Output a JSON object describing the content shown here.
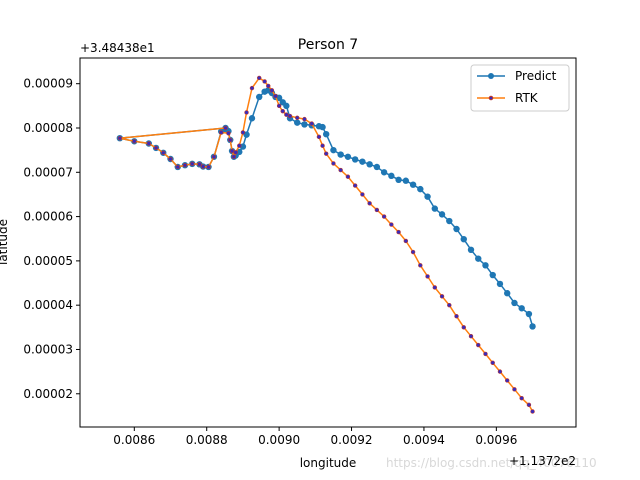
{
  "chart_data": {
    "type": "line",
    "title": "Person 7",
    "xlabel": "longitude",
    "ylabel": "latitude",
    "x_offset_label": "+1.1372e2",
    "y_offset_label": "+3.48438e1",
    "xlim": [
      0.00845,
      0.00982
    ],
    "ylim": [
      1.25e-05,
      9.58e-05
    ],
    "x_ticks": [
      0.0086,
      0.0088,
      0.009,
      0.0092,
      0.0094,
      0.0096
    ],
    "x_tick_labels": [
      "0.0086",
      "0.0088",
      "0.0090",
      "0.0092",
      "0.0094",
      "0.0096"
    ],
    "y_ticks": [
      2e-05,
      3e-05,
      4e-05,
      5e-05,
      6e-05,
      7e-05,
      8e-05,
      9e-05
    ],
    "y_tick_labels": [
      "0.00002",
      "0.00003",
      "0.00004",
      "0.00005",
      "0.00006",
      "0.00007",
      "0.00008",
      "0.00009"
    ],
    "grid": false,
    "legend_position": "top-right",
    "series": [
      {
        "name": "Predict",
        "color": "#1f77b4",
        "marker": "circle",
        "x": [
          0.008852,
          0.00856,
          0.0086,
          0.00864,
          0.00866,
          0.00868,
          0.0087,
          0.00872,
          0.00874,
          0.00876,
          0.00878,
          0.00879,
          0.008805,
          0.00882,
          0.00884,
          0.00886,
          0.008865,
          0.00887,
          0.008875,
          0.00888,
          0.00889,
          0.0089,
          0.00891,
          0.008925,
          0.008945,
          0.00896,
          0.00897,
          0.00898,
          0.00899,
          0.009,
          0.00901,
          0.00902,
          0.00903,
          0.00905,
          0.00907,
          0.00909,
          0.00911,
          0.00912,
          0.00913,
          0.00915,
          0.00917,
          0.00919,
          0.00921,
          0.00923,
          0.00925,
          0.00927,
          0.00929,
          0.00931,
          0.00933,
          0.00935,
          0.00937,
          0.00939,
          0.00941,
          0.00943,
          0.00945,
          0.00947,
          0.00949,
          0.00951,
          0.00953,
          0.00955,
          0.00957,
          0.00959,
          0.00961,
          0.00963,
          0.00965,
          0.00967,
          0.00969,
          0.0097
        ],
        "y": [
          8e-05,
          7.77e-05,
          7.7e-05,
          7.65e-05,
          7.55e-05,
          7.44e-05,
          7.3e-05,
          7.12e-05,
          7.16e-05,
          7.19e-05,
          7.18e-05,
          7.13e-05,
          7.12e-05,
          7.35e-05,
          7.92e-05,
          7.93e-05,
          7.73e-05,
          7.48e-05,
          7.35e-05,
          7.38e-05,
          7.46e-05,
          7.58e-05,
          7.85e-05,
          8.22e-05,
          8.7e-05,
          8.82e-05,
          8.85e-05,
          8.79e-05,
          8.7e-05,
          8.68e-05,
          8.58e-05,
          8.5e-05,
          8.22e-05,
          8.12e-05,
          8.08e-05,
          8.06e-05,
          8.04e-05,
          8.02e-05,
          7.86e-05,
          7.5e-05,
          7.4e-05,
          7.35e-05,
          7.29e-05,
          7.24e-05,
          7.18e-05,
          7.12e-05,
          7e-05,
          6.92e-05,
          6.83e-05,
          6.81e-05,
          6.72e-05,
          6.62e-05,
          6.45e-05,
          6.18e-05,
          6.05e-05,
          5.9e-05,
          5.72e-05,
          5.49e-05,
          5.25e-05,
          5.05e-05,
          4.9e-05,
          4.68e-05,
          4.48e-05,
          4.27e-05,
          4.05e-05,
          3.93e-05,
          3.8e-05,
          3.52e-05
        ]
      },
      {
        "name": "RTK",
        "color": "#ff7f0e",
        "marker": "star",
        "x": [
          0.008852,
          0.00856,
          0.0086,
          0.00864,
          0.00866,
          0.00868,
          0.0087,
          0.00872,
          0.00874,
          0.00876,
          0.00878,
          0.00879,
          0.008805,
          0.00882,
          0.00884,
          0.00886,
          0.008865,
          0.00887,
          0.008875,
          0.00888,
          0.00889,
          0.0089,
          0.00891,
          0.008925,
          0.008945,
          0.00896,
          0.00897,
          0.00898,
          0.00899,
          0.009,
          0.00901,
          0.00902,
          0.00903,
          0.00905,
          0.00907,
          0.00909,
          0.00911,
          0.00912,
          0.00913,
          0.00915,
          0.00917,
          0.00919,
          0.00921,
          0.00923,
          0.00925,
          0.00927,
          0.00929,
          0.00931,
          0.00933,
          0.00935,
          0.00937,
          0.00939,
          0.00941,
          0.00943,
          0.00945,
          0.00947,
          0.00949,
          0.00951,
          0.00953,
          0.00955,
          0.00957,
          0.00959,
          0.00961,
          0.00963,
          0.00965,
          0.00967,
          0.00969,
          0.0097
        ],
        "y": [
          8e-05,
          7.77e-05,
          7.7e-05,
          7.65e-05,
          7.55e-05,
          7.44e-05,
          7.3e-05,
          7.12e-05,
          7.16e-05,
          7.19e-05,
          7.18e-05,
          7.13e-05,
          7.12e-05,
          7.35e-05,
          7.9e-05,
          7.88e-05,
          7.73e-05,
          7.48e-05,
          7.35e-05,
          7.45e-05,
          7.6e-05,
          7.9e-05,
          8.35e-05,
          8.9e-05,
          9.13e-05,
          9.05e-05,
          8.95e-05,
          8.85e-05,
          8.72e-05,
          8.5e-05,
          8.38e-05,
          8.3e-05,
          8.27e-05,
          8.23e-05,
          8.2e-05,
          8.1e-05,
          7.8e-05,
          7.6e-05,
          7.42e-05,
          7.2e-05,
          7.05e-05,
          6.9e-05,
          6.7e-05,
          6.5e-05,
          6.3e-05,
          6.15e-05,
          6e-05,
          5.82e-05,
          5.65e-05,
          5.45e-05,
          5.2e-05,
          4.9e-05,
          4.65e-05,
          4.4e-05,
          4.2e-05,
          4e-05,
          3.75e-05,
          3.5e-05,
          3.3e-05,
          3.1e-05,
          2.9e-05,
          2.7e-05,
          2.5e-05,
          2.3e-05,
          2.1e-05,
          1.9e-05,
          1.75e-05,
          1.6e-05
        ]
      }
    ]
  },
  "watermark": "https://blog.csdn.net/qq_40076110"
}
